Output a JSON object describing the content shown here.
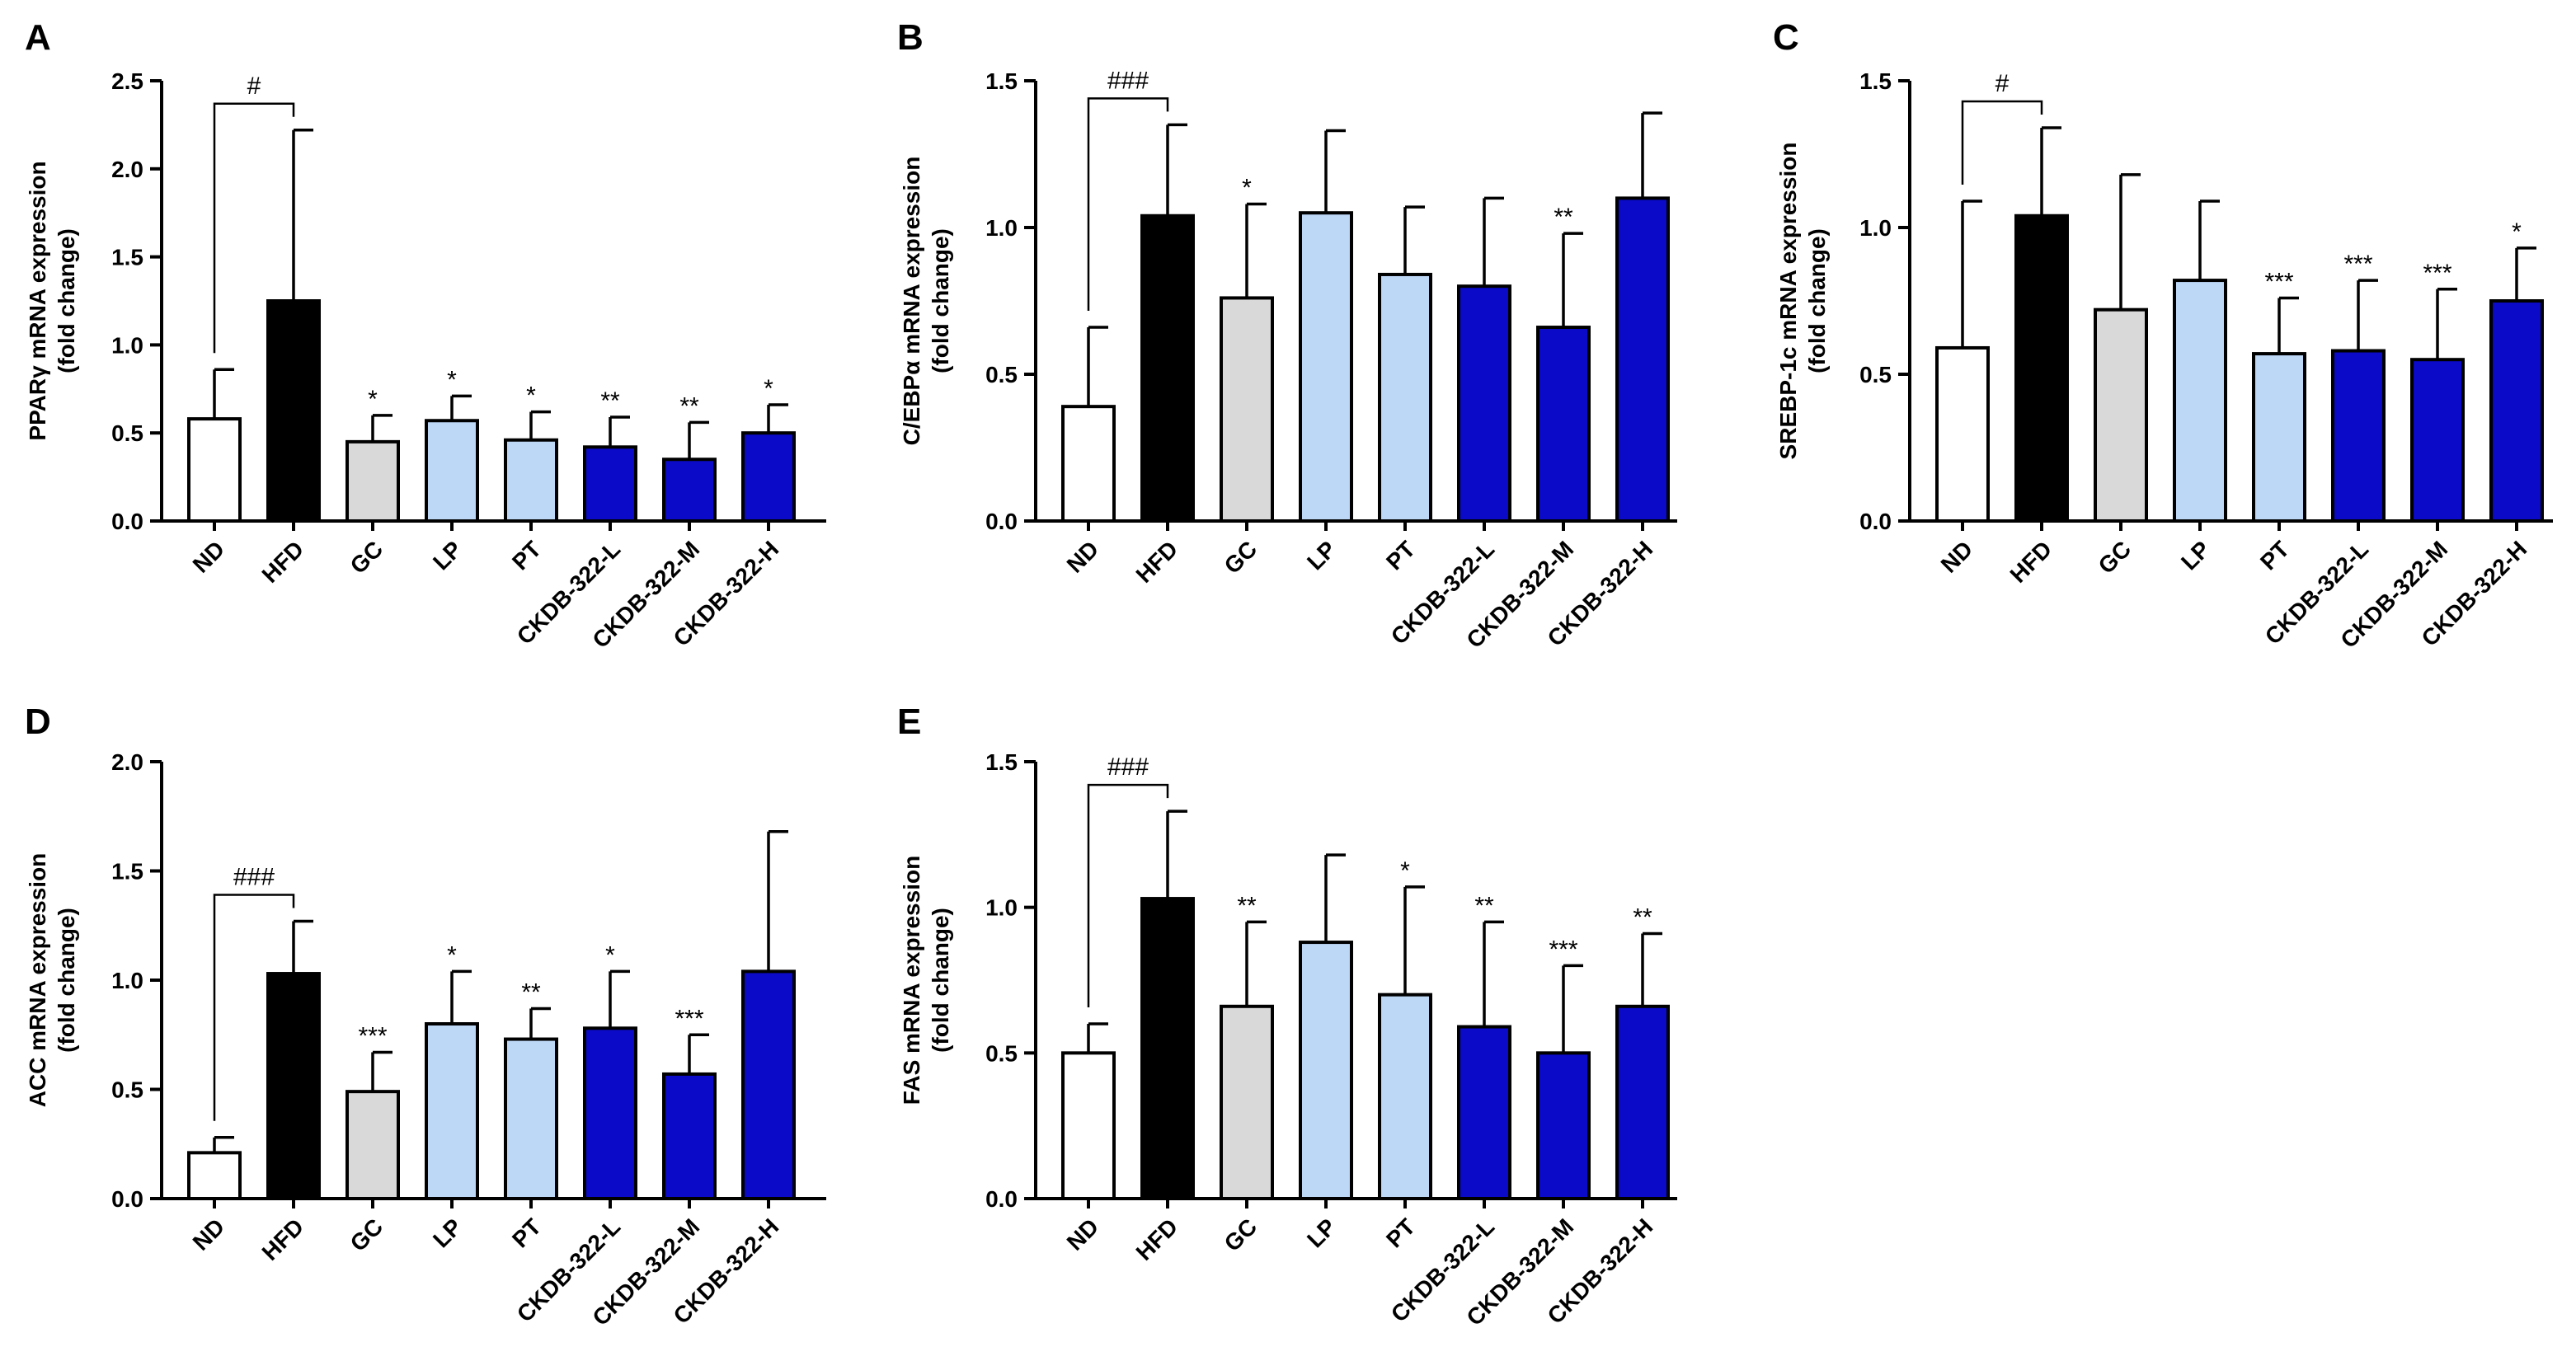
{
  "colors": {
    "ND": "#ffffff",
    "HFD": "#000000",
    "GC": "#d9d9d9",
    "LP": "#bdd7f7",
    "PT": "#bdd7f7",
    "CKDB-322-L": "#0a0ac8",
    "CKDB-322-M": "#0a0ac8",
    "CKDB-322-H": "#0a0ac8",
    "outline": "#000000"
  },
  "chart_data": [
    {
      "panel": "A",
      "type": "bar",
      "ylabel_line1": "PPARγ mRNA expression",
      "ylabel_line2": "(fold change)",
      "categories": [
        "ND",
        "HFD",
        "GC",
        "LP",
        "PT",
        "CKDB-322-L",
        "CKDB-322-M",
        "CKDB-322-H"
      ],
      "values": [
        0.58,
        1.25,
        0.45,
        0.57,
        0.46,
        0.42,
        0.35,
        0.5
      ],
      "errors": [
        0.28,
        0.97,
        0.15,
        0.14,
        0.16,
        0.17,
        0.21,
        0.16
      ],
      "significance": [
        "",
        "#",
        "*",
        "*",
        "*",
        "**",
        "**",
        "*"
      ],
      "bracket": {
        "from": 0,
        "to": 1,
        "label": "#"
      },
      "ylim": [
        0,
        2.5
      ],
      "yticks": [
        0.0,
        0.5,
        1.0,
        1.5,
        2.0,
        2.5
      ],
      "ytick_labels": [
        "0.0",
        "0.5",
        "1.0",
        "1.5",
        "2.0",
        "2.5"
      ]
    },
    {
      "panel": "B",
      "type": "bar",
      "ylabel_line1": "C/EBPα mRNA expression",
      "ylabel_line2": "(fold change)",
      "categories": [
        "ND",
        "HFD",
        "GC",
        "LP",
        "PT",
        "CKDB-322-L",
        "CKDB-322-M",
        "CKDB-322-H"
      ],
      "values": [
        0.39,
        1.04,
        0.76,
        1.05,
        0.84,
        0.8,
        0.66,
        1.1
      ],
      "errors": [
        0.27,
        0.31,
        0.32,
        0.28,
        0.23,
        0.3,
        0.32,
        0.29
      ],
      "significance": [
        "",
        "###",
        "*",
        "",
        "",
        "",
        "**",
        ""
      ],
      "bracket": {
        "from": 0,
        "to": 1,
        "label": "###"
      },
      "ylim": [
        0,
        1.5
      ],
      "yticks": [
        0.0,
        0.5,
        1.0,
        1.5
      ],
      "ytick_labels": [
        "0.0",
        "0.5",
        "1.0",
        "1.5"
      ]
    },
    {
      "panel": "C",
      "type": "bar",
      "ylabel_line1": "SREBP-1c mRNA expression",
      "ylabel_line2": "(fold change)",
      "categories": [
        "ND",
        "HFD",
        "GC",
        "LP",
        "PT",
        "CKDB-322-L",
        "CKDB-322-M",
        "CKDB-322-H"
      ],
      "values": [
        0.59,
        1.04,
        0.72,
        0.82,
        0.57,
        0.58,
        0.55,
        0.75
      ],
      "errors": [
        0.5,
        0.3,
        0.46,
        0.27,
        0.19,
        0.24,
        0.24,
        0.18
      ],
      "significance": [
        "",
        "#",
        "",
        "",
        "***",
        "***",
        "***",
        "*"
      ],
      "bracket": {
        "from": 0,
        "to": 1,
        "label": "#"
      },
      "ylim": [
        0,
        1.5
      ],
      "yticks": [
        0.0,
        0.5,
        1.0,
        1.5
      ],
      "ytick_labels": [
        "0.0",
        "0.5",
        "1.0",
        "1.5"
      ]
    },
    {
      "panel": "D",
      "type": "bar",
      "ylabel_line1": "ACC mRNA expression",
      "ylabel_line2": "(fold change)",
      "categories": [
        "ND",
        "HFD",
        "GC",
        "LP",
        "PT",
        "CKDB-322-L",
        "CKDB-322-M",
        "CKDB-322-H"
      ],
      "values": [
        0.21,
        1.03,
        0.49,
        0.8,
        0.73,
        0.78,
        0.57,
        1.04
      ],
      "errors": [
        0.07,
        0.24,
        0.18,
        0.24,
        0.14,
        0.26,
        0.18,
        0.64
      ],
      "significance": [
        "",
        "###",
        "***",
        "*",
        "**",
        "*",
        "***",
        ""
      ],
      "bracket": {
        "from": 0,
        "to": 1,
        "label": "###"
      },
      "ylim": [
        0,
        2.0
      ],
      "yticks": [
        0.0,
        0.5,
        1.0,
        1.5,
        2.0
      ],
      "ytick_labels": [
        "0.0",
        "0.5",
        "1.0",
        "1.5",
        "2.0"
      ]
    },
    {
      "panel": "E",
      "type": "bar",
      "ylabel_line1": "FAS mRNA expression",
      "ylabel_line2": "(fold change)",
      "categories": [
        "ND",
        "HFD",
        "GC",
        "LP",
        "PT",
        "CKDB-322-L",
        "CKDB-322-M",
        "CKDB-322-H"
      ],
      "values": [
        0.5,
        1.03,
        0.66,
        0.88,
        0.7,
        0.59,
        0.5,
        0.66
      ],
      "errors": [
        0.1,
        0.3,
        0.29,
        0.3,
        0.37,
        0.36,
        0.3,
        0.25
      ],
      "significance": [
        "",
        "###",
        "**",
        "",
        "*",
        "**",
        "***",
        "**"
      ],
      "bracket": {
        "from": 0,
        "to": 1,
        "label": "###"
      },
      "ylim": [
        0,
        1.5
      ],
      "yticks": [
        0.0,
        0.5,
        1.0,
        1.5
      ],
      "ytick_labels": [
        "0.0",
        "0.5",
        "1.0",
        "1.5"
      ]
    }
  ]
}
